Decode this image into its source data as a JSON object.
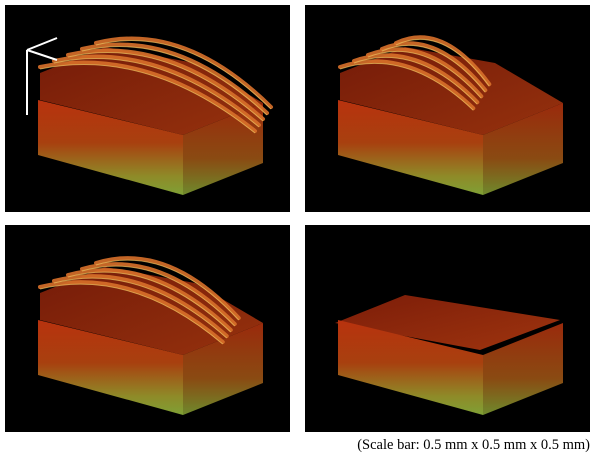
{
  "caption": "(Scale bar: 0.5 mm x 0.5 mm x 0.5 mm)"
}
